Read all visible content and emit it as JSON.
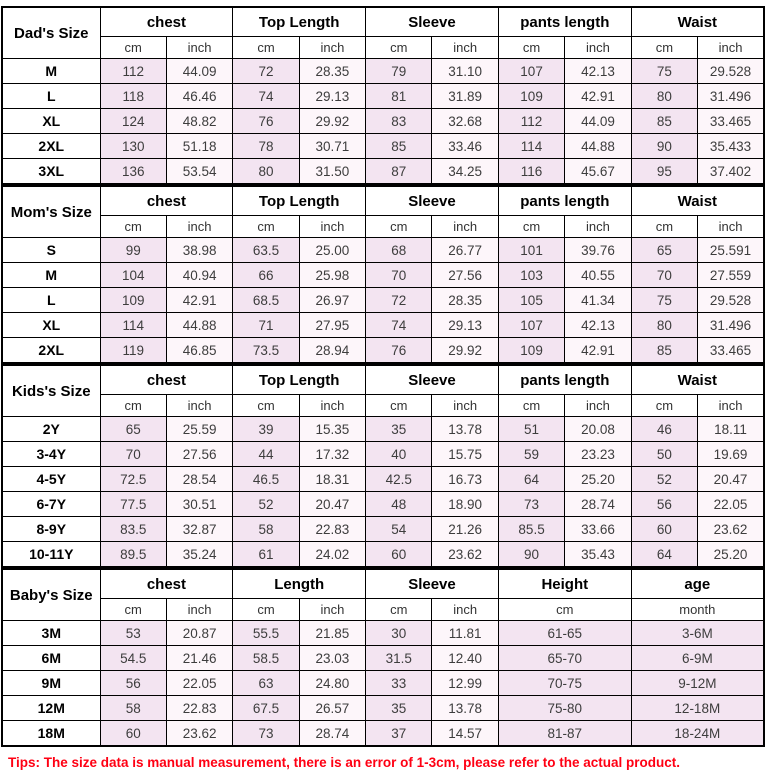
{
  "page": {
    "tips": "Tips: The size data is manual measurement, there is an error of 1-3cm, please refer to the actual product."
  },
  "tables": [
    {
      "id": "dads",
      "title": "Dad's Size",
      "groups": [
        {
          "label": "chest",
          "subs": [
            "cm",
            "inch"
          ]
        },
        {
          "label": "Top Length",
          "subs": [
            "cm",
            "inch"
          ]
        },
        {
          "label": "Sleeve",
          "subs": [
            "cm",
            "inch"
          ]
        },
        {
          "label": "pants length",
          "subs": [
            "cm",
            "inch"
          ]
        },
        {
          "label": "Waist",
          "subs": [
            "cm",
            "inch"
          ]
        }
      ],
      "rows": [
        {
          "size": "M",
          "cells": [
            "112",
            "44.09",
            "72",
            "28.35",
            "79",
            "31.10",
            "107",
            "42.13",
            "75",
            "29.528"
          ]
        },
        {
          "size": "L",
          "cells": [
            "118",
            "46.46",
            "74",
            "29.13",
            "81",
            "31.89",
            "109",
            "42.91",
            "80",
            "31.496"
          ]
        },
        {
          "size": "XL",
          "cells": [
            "124",
            "48.82",
            "76",
            "29.92",
            "83",
            "32.68",
            "112",
            "44.09",
            "85",
            "33.465"
          ]
        },
        {
          "size": "2XL",
          "cells": [
            "130",
            "51.18",
            "78",
            "30.71",
            "85",
            "33.46",
            "114",
            "44.88",
            "90",
            "35.433"
          ]
        },
        {
          "size": "3XL",
          "cells": [
            "136",
            "53.54",
            "80",
            "31.50",
            "87",
            "34.25",
            "116",
            "45.67",
            "95",
            "37.402"
          ]
        }
      ]
    },
    {
      "id": "moms",
      "title": "Mom's Size",
      "groups": [
        {
          "label": "chest",
          "subs": [
            "cm",
            "inch"
          ]
        },
        {
          "label": "Top Length",
          "subs": [
            "cm",
            "inch"
          ]
        },
        {
          "label": "Sleeve",
          "subs": [
            "cm",
            "inch"
          ]
        },
        {
          "label": "pants length",
          "subs": [
            "cm",
            "inch"
          ]
        },
        {
          "label": "Waist",
          "subs": [
            "cm",
            "inch"
          ]
        }
      ],
      "rows": [
        {
          "size": "S",
          "cells": [
            "99",
            "38.98",
            "63.5",
            "25.00",
            "68",
            "26.77",
            "101",
            "39.76",
            "65",
            "25.591"
          ]
        },
        {
          "size": "M",
          "cells": [
            "104",
            "40.94",
            "66",
            "25.98",
            "70",
            "27.56",
            "103",
            "40.55",
            "70",
            "27.559"
          ]
        },
        {
          "size": "L",
          "cells": [
            "109",
            "42.91",
            "68.5",
            "26.97",
            "72",
            "28.35",
            "105",
            "41.34",
            "75",
            "29.528"
          ]
        },
        {
          "size": "XL",
          "cells": [
            "114",
            "44.88",
            "71",
            "27.95",
            "74",
            "29.13",
            "107",
            "42.13",
            "80",
            "31.496"
          ]
        },
        {
          "size": "2XL",
          "cells": [
            "119",
            "46.85",
            "73.5",
            "28.94",
            "76",
            "29.92",
            "109",
            "42.91",
            "85",
            "33.465"
          ]
        }
      ]
    },
    {
      "id": "kids",
      "title": "Kids's Size",
      "groups": [
        {
          "label": "chest",
          "subs": [
            "cm",
            "inch"
          ]
        },
        {
          "label": "Top Length",
          "subs": [
            "cm",
            "inch"
          ]
        },
        {
          "label": "Sleeve",
          "subs": [
            "cm",
            "inch"
          ]
        },
        {
          "label": "pants length",
          "subs": [
            "cm",
            "inch"
          ]
        },
        {
          "label": "Waist",
          "subs": [
            "cm",
            "inch"
          ]
        }
      ],
      "rows": [
        {
          "size": "2Y",
          "cells": [
            "65",
            "25.59",
            "39",
            "15.35",
            "35",
            "13.78",
            "51",
            "20.08",
            "46",
            "18.11"
          ]
        },
        {
          "size": "3-4Y",
          "cells": [
            "70",
            "27.56",
            "44",
            "17.32",
            "40",
            "15.75",
            "59",
            "23.23",
            "50",
            "19.69"
          ]
        },
        {
          "size": "4-5Y",
          "cells": [
            "72.5",
            "28.54",
            "46.5",
            "18.31",
            "42.5",
            "16.73",
            "64",
            "25.20",
            "52",
            "20.47"
          ]
        },
        {
          "size": "6-7Y",
          "cells": [
            "77.5",
            "30.51",
            "52",
            "20.47",
            "48",
            "18.90",
            "73",
            "28.74",
            "56",
            "22.05"
          ]
        },
        {
          "size": "8-9Y",
          "cells": [
            "83.5",
            "32.87",
            "58",
            "22.83",
            "54",
            "21.26",
            "85.5",
            "33.66",
            "60",
            "23.62"
          ]
        },
        {
          "size": "10-11Y",
          "cells": [
            "89.5",
            "35.24",
            "61",
            "24.02",
            "60",
            "23.62",
            "90",
            "35.43",
            "64",
            "25.20"
          ]
        }
      ]
    },
    {
      "id": "babys",
      "title": "Baby's Size",
      "groups": [
        {
          "label": "chest",
          "subs": [
            "cm",
            "inch"
          ]
        },
        {
          "label": "Length",
          "subs": [
            "cm",
            "inch"
          ]
        },
        {
          "label": "Sleeve",
          "subs": [
            "cm",
            "inch"
          ]
        },
        {
          "label": "Height",
          "subs": [
            {
              "label": "cm",
              "span": 2
            }
          ]
        },
        {
          "label": "age",
          "subs": [
            {
              "label": "month",
              "span": 2
            }
          ]
        }
      ],
      "rows": [
        {
          "size": "3M",
          "cells": [
            "53",
            "20.87",
            "55.5",
            "21.85",
            "30",
            "11.81",
            {
              "text": "61-65",
              "span": 2
            },
            {
              "text": "3-6M",
              "span": 2
            }
          ]
        },
        {
          "size": "6M",
          "cells": [
            "54.5",
            "21.46",
            "58.5",
            "23.03",
            "31.5",
            "12.40",
            {
              "text": "65-70",
              "span": 2
            },
            {
              "text": "6-9M",
              "span": 2
            }
          ]
        },
        {
          "size": "9M",
          "cells": [
            "56",
            "22.05",
            "63",
            "24.80",
            "33",
            "12.99",
            {
              "text": "70-75",
              "span": 2
            },
            {
              "text": "9-12M",
              "span": 2
            }
          ]
        },
        {
          "size": "12M",
          "cells": [
            "58",
            "22.83",
            "67.5",
            "26.57",
            "35",
            "13.78",
            {
              "text": "75-80",
              "span": 2
            },
            {
              "text": "12-18M",
              "span": 2
            }
          ]
        },
        {
          "size": "18M",
          "cells": [
            "60",
            "23.62",
            "73",
            "28.74",
            "37",
            "14.57",
            {
              "text": "81-87",
              "span": 2
            },
            {
              "text": "18-24M",
              "span": 2
            }
          ]
        }
      ]
    }
  ]
}
